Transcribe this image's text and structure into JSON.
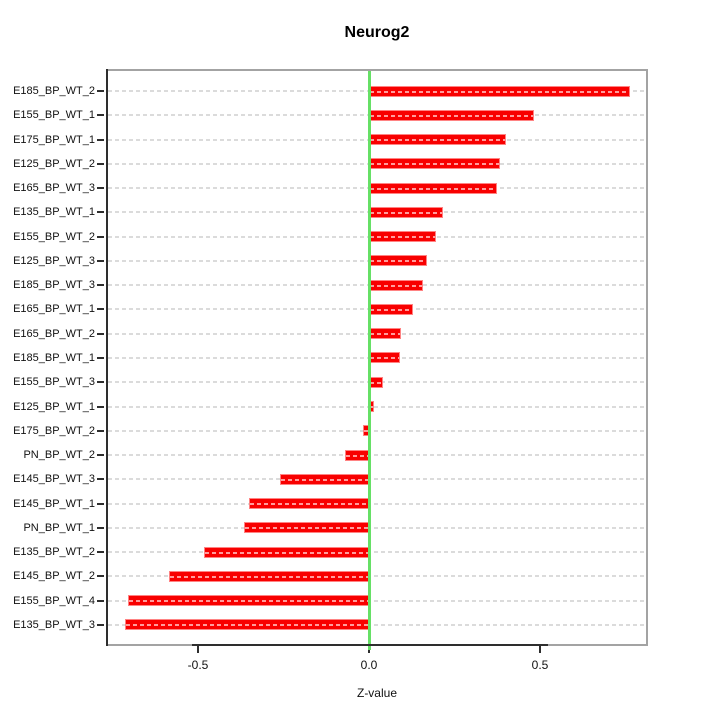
{
  "chart_data": {
    "type": "bar",
    "orientation": "horizontal",
    "title": "Neurog2",
    "xlabel": "Z-value",
    "ylabel": "",
    "categories": [
      "E185_BP_WT_2",
      "E155_BP_WT_1",
      "E175_BP_WT_1",
      "E125_BP_WT_2",
      "E165_BP_WT_3",
      "E135_BP_WT_1",
      "E155_BP_WT_2",
      "E125_BP_WT_3",
      "E185_BP_WT_3",
      "E165_BP_WT_1",
      "E165_BP_WT_2",
      "E185_BP_WT_1",
      "E155_BP_WT_3",
      "E125_BP_WT_1",
      "E175_BP_WT_2",
      "PN_BP_WT_2",
      "E145_BP_WT_3",
      "E145_BP_WT_1",
      "PN_BP_WT_1",
      "E135_BP_WT_2",
      "E145_BP_WT_2",
      "E155_BP_WT_4",
      "E135_BP_WT_3"
    ],
    "values": [
      0.762,
      0.481,
      0.401,
      0.382,
      0.374,
      0.215,
      0.197,
      0.17,
      0.158,
      0.129,
      0.094,
      0.092,
      0.042,
      0.015,
      -0.018,
      -0.071,
      -0.261,
      -0.351,
      -0.366,
      -0.483,
      -0.584,
      -0.706,
      -0.714
    ],
    "xlim": [
      -0.77,
      0.81
    ],
    "x_ticks": [
      {
        "value": -0.5,
        "label": "-0.5"
      },
      {
        "value": 0.0,
        "label": "0.0"
      },
      {
        "value": 0.5,
        "label": "0.5"
      }
    ],
    "grid": true,
    "legend": false,
    "colors": {
      "bar": "#f80000",
      "bar_border": "#ff8383",
      "bar_inner_dash": "#ff9c9c",
      "zero_line": "#66e066",
      "grid_line": "#dbdbdb",
      "box": "#a3a3a3",
      "axis": "#2e2e2e",
      "text": "#111111"
    }
  }
}
